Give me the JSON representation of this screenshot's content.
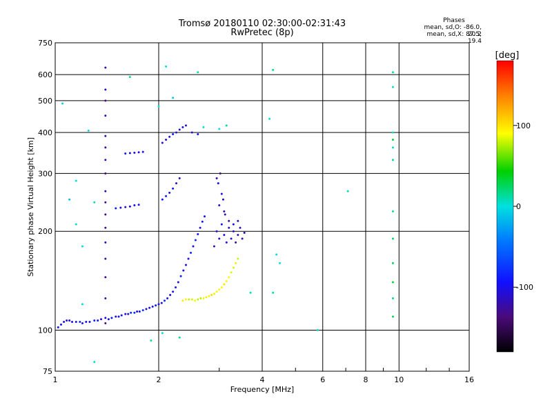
{
  "header": {
    "title_line1": "Tromsø 20180110 02:30:00-02:31:43",
    "title_line2": "RwPretec (8p)",
    "phases_title": "Phases",
    "phases_o": "mean, sd,O: -86.0, 20.2",
    "phases_x": "mean, sd,X:  87.5, 19.4"
  },
  "chart_data": {
    "type": "scatter",
    "title": "Tromsø 20180110 02:30:00-02:31:43",
    "subtitle": "RwPretec (8p)",
    "xlabel": "Frequency [MHz]",
    "ylabel": "Stationary phase Virtual Height [km]",
    "xscale": "log",
    "yscale": "log",
    "xlim": [
      1,
      16
    ],
    "ylim": [
      75,
      750
    ],
    "x_ticks": [
      1,
      2,
      4,
      6,
      8,
      10,
      16
    ],
    "x_tick_labels": [
      "1",
      "2",
      "4",
      "6",
      "8",
      "10",
      "16"
    ],
    "y_ticks": [
      75,
      100,
      200,
      300,
      400,
      500,
      600,
      750
    ],
    "y_tick_labels": [
      "75",
      "100",
      "200",
      "300",
      "400",
      "500",
      "600",
      "750"
    ],
    "grid": true,
    "colorbar": {
      "label": "[deg]",
      "range": [
        -180,
        180
      ],
      "ticks": [
        -100,
        0,
        100
      ],
      "tick_labels": [
        "-100",
        "0",
        "100"
      ]
    },
    "series": [
      {
        "name": "O-mode trace",
        "phase": -95,
        "points": [
          [
            1.02,
            102
          ],
          [
            1.04,
            104
          ],
          [
            1.06,
            106
          ],
          [
            1.08,
            107
          ],
          [
            1.1,
            107
          ],
          [
            1.12,
            106
          ],
          [
            1.15,
            106
          ],
          [
            1.18,
            106
          ],
          [
            1.2,
            105
          ],
          [
            1.23,
            106
          ],
          [
            1.26,
            106
          ],
          [
            1.3,
            107
          ],
          [
            1.33,
            107
          ],
          [
            1.36,
            108
          ],
          [
            1.4,
            109
          ],
          [
            1.43,
            108
          ],
          [
            1.46,
            109
          ],
          [
            1.5,
            110
          ],
          [
            1.53,
            110
          ],
          [
            1.56,
            111
          ],
          [
            1.6,
            112
          ],
          [
            1.63,
            112
          ],
          [
            1.66,
            113
          ],
          [
            1.7,
            113
          ],
          [
            1.73,
            114
          ],
          [
            1.76,
            114
          ],
          [
            1.8,
            115
          ],
          [
            1.84,
            116
          ],
          [
            1.88,
            117
          ],
          [
            1.92,
            118
          ],
          [
            1.96,
            119
          ],
          [
            2.0,
            120
          ],
          [
            2.04,
            121
          ],
          [
            2.08,
            123
          ],
          [
            2.12,
            125
          ],
          [
            2.16,
            128
          ],
          [
            2.2,
            131
          ],
          [
            2.24,
            135
          ],
          [
            2.28,
            140
          ],
          [
            2.32,
            146
          ],
          [
            2.36,
            152
          ],
          [
            2.4,
            158
          ],
          [
            2.44,
            165
          ],
          [
            2.48,
            172
          ],
          [
            2.52,
            180
          ],
          [
            2.56,
            188
          ],
          [
            2.6,
            196
          ],
          [
            2.64,
            205
          ],
          [
            2.68,
            214
          ],
          [
            2.72,
            222
          ]
        ]
      },
      {
        "name": "X-mode trace",
        "phase": 90,
        "points": [
          [
            2.35,
            123
          ],
          [
            2.4,
            124
          ],
          [
            2.45,
            124
          ],
          [
            2.5,
            124
          ],
          [
            2.55,
            123
          ],
          [
            2.6,
            124
          ],
          [
            2.65,
            125
          ],
          [
            2.7,
            125
          ],
          [
            2.75,
            126
          ],
          [
            2.8,
            127
          ],
          [
            2.85,
            128
          ],
          [
            2.9,
            129
          ],
          [
            2.95,
            131
          ],
          [
            3.0,
            133
          ],
          [
            3.05,
            135
          ],
          [
            3.1,
            138
          ],
          [
            3.15,
            141
          ],
          [
            3.2,
            145
          ],
          [
            3.25,
            150
          ],
          [
            3.3,
            155
          ],
          [
            3.35,
            160
          ],
          [
            3.4,
            165
          ]
        ]
      },
      {
        "name": "Spread F region",
        "phase": -115,
        "points": [
          [
            2.9,
            180
          ],
          [
            2.95,
            200
          ],
          [
            3.0,
            190
          ],
          [
            3.05,
            210
          ],
          [
            3.1,
            195
          ],
          [
            3.15,
            185
          ],
          [
            3.2,
            205
          ],
          [
            3.25,
            190
          ],
          [
            3.3,
            200
          ],
          [
            3.35,
            185
          ],
          [
            3.4,
            195
          ],
          [
            3.45,
            205
          ],
          [
            3.5,
            190
          ],
          [
            3.55,
            198
          ],
          [
            3.0,
            240
          ],
          [
            3.05,
            260
          ],
          [
            3.1,
            230
          ],
          [
            2.98,
            280
          ],
          [
            3.02,
            300
          ],
          [
            2.95,
            290
          ],
          [
            3.08,
            250
          ],
          [
            3.12,
            225
          ],
          [
            3.2,
            215
          ],
          [
            3.3,
            210
          ],
          [
            3.4,
            215
          ]
        ]
      },
      {
        "name": "Upper traces",
        "phase": -100,
        "points": [
          [
            1.6,
            345
          ],
          [
            1.65,
            346
          ],
          [
            1.7,
            347
          ],
          [
            1.75,
            348
          ],
          [
            1.8,
            349
          ],
          [
            1.5,
            235
          ],
          [
            1.55,
            236
          ],
          [
            1.6,
            237
          ],
          [
            1.65,
            238
          ],
          [
            1.7,
            240
          ],
          [
            1.75,
            241
          ],
          [
            2.05,
            250
          ],
          [
            2.1,
            256
          ],
          [
            2.15,
            262
          ],
          [
            2.2,
            270
          ],
          [
            2.25,
            280
          ],
          [
            2.3,
            290
          ],
          [
            2.05,
            372
          ],
          [
            2.1,
            380
          ],
          [
            2.15,
            388
          ],
          [
            2.2,
            395
          ],
          [
            2.25,
            400
          ],
          [
            2.3,
            408
          ],
          [
            2.35,
            415
          ],
          [
            2.4,
            420
          ],
          [
            2.5,
            400
          ],
          [
            2.6,
            395
          ]
        ]
      },
      {
        "name": "Vertical column 1.4 MHz",
        "phase": -120,
        "points": [
          [
            1.4,
            105
          ],
          [
            1.4,
            125
          ],
          [
            1.4,
            145
          ],
          [
            1.4,
            165
          ],
          [
            1.4,
            185
          ],
          [
            1.4,
            205
          ],
          [
            1.4,
            225
          ],
          [
            1.4,
            245
          ],
          [
            1.4,
            265
          ],
          [
            1.4,
            300
          ],
          [
            1.4,
            330
          ],
          [
            1.4,
            360
          ],
          [
            1.4,
            390
          ],
          [
            1.4,
            450
          ],
          [
            1.4,
            500
          ],
          [
            1.4,
            540
          ],
          [
            1.4,
            630
          ]
        ]
      },
      {
        "name": "Vertical column 9.6 MHz",
        "phase": 20,
        "points": [
          [
            9.6,
            110
          ],
          [
            9.6,
            125
          ],
          [
            9.6,
            140
          ],
          [
            9.6,
            160
          ],
          [
            9.6,
            190
          ],
          [
            9.6,
            230
          ],
          [
            9.6,
            330
          ],
          [
            9.6,
            360
          ],
          [
            9.6,
            380
          ],
          [
            9.6,
            400
          ],
          [
            9.6,
            550
          ],
          [
            9.6,
            610
          ]
        ]
      },
      {
        "name": "Scattered points",
        "phase": 0,
        "points": [
          [
            1.05,
            490
          ],
          [
            1.1,
            250
          ],
          [
            1.15,
            285
          ],
          [
            1.2,
            120
          ],
          [
            1.25,
            405
          ],
          [
            1.3,
            80
          ],
          [
            1.65,
            590
          ],
          [
            2.0,
            480
          ],
          [
            2.1,
            635
          ],
          [
            2.2,
            510
          ],
          [
            2.6,
            610
          ],
          [
            2.7,
            415
          ],
          [
            3.0,
            410
          ],
          [
            3.15,
            420
          ],
          [
            3.7,
            130
          ],
          [
            4.2,
            440
          ],
          [
            4.3,
            620
          ],
          [
            4.3,
            130
          ],
          [
            4.4,
            170
          ],
          [
            4.5,
            160
          ],
          [
            5.8,
            100
          ],
          [
            7.1,
            265
          ],
          [
            1.9,
            93
          ],
          [
            2.05,
            98
          ],
          [
            2.3,
            95
          ],
          [
            1.15,
            210
          ],
          [
            1.3,
            245
          ],
          [
            1.2,
            180
          ]
        ]
      }
    ]
  }
}
